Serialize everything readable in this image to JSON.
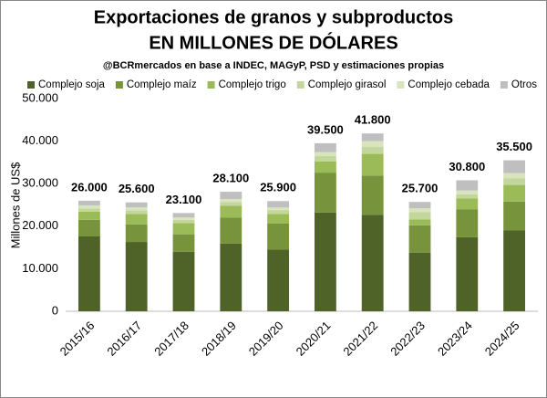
{
  "chart_data": {
    "type": "stacked_bar",
    "title": "Exportaciones de granos y subproductos",
    "subtitle": "EN MILLONES DE DÓLARES",
    "source": "@BCRmercados en base a INDEC, MAGyP, PSD y estimaciones propias",
    "y_label": "Millones de US$",
    "categories": [
      "2015/16",
      "2016/17",
      "2017/18",
      "2018/19",
      "2019/20",
      "2020/21",
      "2021/22",
      "2022/23",
      "2023/24",
      "2024/25"
    ],
    "series": [
      {
        "name": "Complejo soja",
        "color": "#4f6228",
        "values": [
          17600,
          16300,
          14000,
          15900,
          14500,
          23200,
          22700,
          13800,
          17400,
          19000
        ]
      },
      {
        "name": "Complejo maíz",
        "color": "#77933c",
        "values": [
          3900,
          4100,
          4100,
          6100,
          6100,
          9400,
          9200,
          6400,
          6600,
          6800
        ]
      },
      {
        "name": "Complejo trigo",
        "color": "#9bbb59",
        "values": [
          1900,
          2500,
          2600,
          2800,
          2300,
          2600,
          5100,
          1400,
          2500,
          3900
        ]
      },
      {
        "name": "Complejo girasol",
        "color": "#c3d69b",
        "values": [
          800,
          800,
          800,
          900,
          900,
          1300,
          1700,
          1700,
          1000,
          1600
        ]
      },
      {
        "name": "Complejo cebada",
        "color": "#d7e4bc",
        "values": [
          700,
          700,
          600,
          700,
          600,
          900,
          1300,
          900,
          900,
          1200
        ]
      },
      {
        "name": "Otros",
        "color": "#bfbfbf",
        "values": [
          1100,
          1200,
          1000,
          1700,
          1500,
          2100,
          1800,
          1500,
          2400,
          3000
        ]
      },
      {
        "name": "Total",
        "values": [
          26000,
          25600,
          23100,
          28100,
          25900,
          39500,
          41800,
          25700,
          30800,
          35500
        ],
        "value_labels": [
          "26.000",
          "25.600",
          "23.100",
          "28.100",
          "25.900",
          "39.500",
          "41.800",
          "25.700",
          "30.800",
          "35.500"
        ]
      }
    ],
    "ylim": [
      0,
      50000
    ],
    "yticks": [
      0,
      {
        "value": 10000,
        "label": "10.000"
      },
      {
        "value": 20000,
        "label": "20.000"
      },
      {
        "value": 30000,
        "label": "30.000"
      },
      {
        "value": 40000,
        "label": "40.000"
      },
      {
        "value": 50000,
        "label": "50.000"
      }
    ],
    "grid": false
  }
}
